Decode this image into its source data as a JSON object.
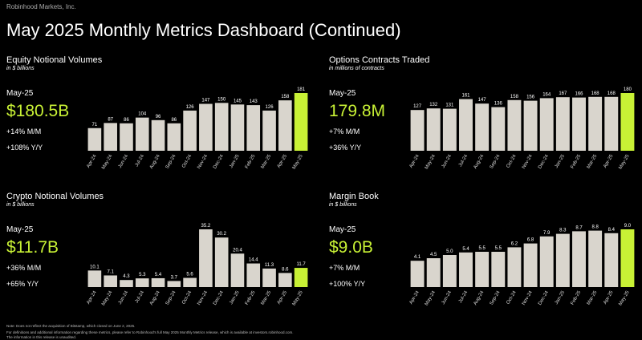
{
  "header": {
    "company": "Robinhood Markets, Inc.",
    "title": "May 2025 Monthly Metrics Dashboard (Continued)"
  },
  "footnotes": [
    "Note: Does not reflect the acquisition of Bitstamp, which closed on June 2, 2025.",
    "For definitions and additional information regarding these metrics, please refer to Robinhood's full May 2025 Monthly Metrics release, which is available at investors.robinhood.com.",
    "The information in this release is unaudited."
  ],
  "chart_data": [
    {
      "type": "bar",
      "title": "Equity Notional Volumes",
      "subtitle": "in $ billions",
      "kpi_period": "May-25",
      "kpi_value": "$180.5B",
      "kpi_mom": "+14% M/M",
      "kpi_yoy": "+108% Y/Y",
      "categories": [
        "Apr-24",
        "May-24",
        "Jun-24",
        "Jul-24",
        "Aug-24",
        "Sep-24",
        "Oct-24",
        "Nov-24",
        "Dec-24",
        "Jan-25",
        "Feb-25",
        "Mar-25",
        "Apr-25",
        "May-25"
      ],
      "values": [
        71,
        87,
        86,
        104,
        96,
        86,
        126,
        147,
        150,
        145,
        143,
        126,
        158,
        181
      ],
      "color": "#d9d5cd",
      "highlight_color": "#c8f135"
    },
    {
      "type": "bar",
      "title": "Options Contracts Traded",
      "subtitle": "in millions of contracts",
      "kpi_period": "May-25",
      "kpi_value": "179.8M",
      "kpi_mom": "+7% M/M",
      "kpi_yoy": "+36% Y/Y",
      "categories": [
        "Apr-24",
        "May-24",
        "Jun-24",
        "Jul-24",
        "Aug-24",
        "Sep-24",
        "Oct-24",
        "Nov-24",
        "Dec-24",
        "Jan-25",
        "Feb-25",
        "Mar-25",
        "Apr-25",
        "May-25"
      ],
      "values": [
        127,
        132,
        131,
        161,
        147,
        136,
        158,
        156,
        164,
        167,
        166,
        168,
        168,
        180
      ],
      "color": "#d9d5cd",
      "highlight_color": "#c8f135"
    },
    {
      "type": "bar",
      "title": "Crypto Notional Volumes",
      "subtitle": "in $ billions",
      "kpi_period": "May-25",
      "kpi_value": "$11.7B",
      "kpi_mom": "+36% M/M",
      "kpi_yoy": "+65% Y/Y",
      "categories": [
        "Apr-24",
        "May-24",
        "Jun-24",
        "Jul-24",
        "Aug-24",
        "Sep-24",
        "Oct-24",
        "Nov-24",
        "Dec-24",
        "Jan-25",
        "Feb-25",
        "Mar-25",
        "Apr-25",
        "May-25"
      ],
      "values": [
        10.1,
        7.1,
        4.3,
        5.3,
        5.4,
        3.7,
        5.6,
        35.2,
        30.2,
        20.4,
        14.4,
        11.3,
        8.6,
        11.7
      ],
      "color": "#d9d5cd",
      "highlight_color": "#c8f135"
    },
    {
      "type": "bar",
      "title": "Margin Book",
      "subtitle": "in $ billions",
      "kpi_period": "May-25",
      "kpi_value": "$9.0B",
      "kpi_mom": "+7% M/M",
      "kpi_yoy": "+100% Y/Y",
      "categories": [
        "Apr-24",
        "May-24",
        "Jun-24",
        "Jul-24",
        "Aug-24",
        "Sep-24",
        "Oct-24",
        "Nov-24",
        "Dec-24",
        "Jan-25",
        "Feb-25",
        "Mar-25",
        "Apr-25",
        "May-25"
      ],
      "values": [
        4.1,
        4.5,
        5.0,
        5.4,
        5.5,
        5.5,
        6.2,
        6.8,
        7.9,
        8.3,
        8.7,
        8.8,
        8.4,
        9.0
      ],
      "value_labels": [
        "4.1",
        "4.5",
        "5.0",
        "5.4",
        "5.5",
        "5.5",
        "6.2",
        "6.8",
        "7.9",
        "8.3",
        "8.7",
        "8.8",
        "8.4",
        "9.0"
      ],
      "color": "#d9d5cd",
      "highlight_color": "#c8f135"
    }
  ]
}
